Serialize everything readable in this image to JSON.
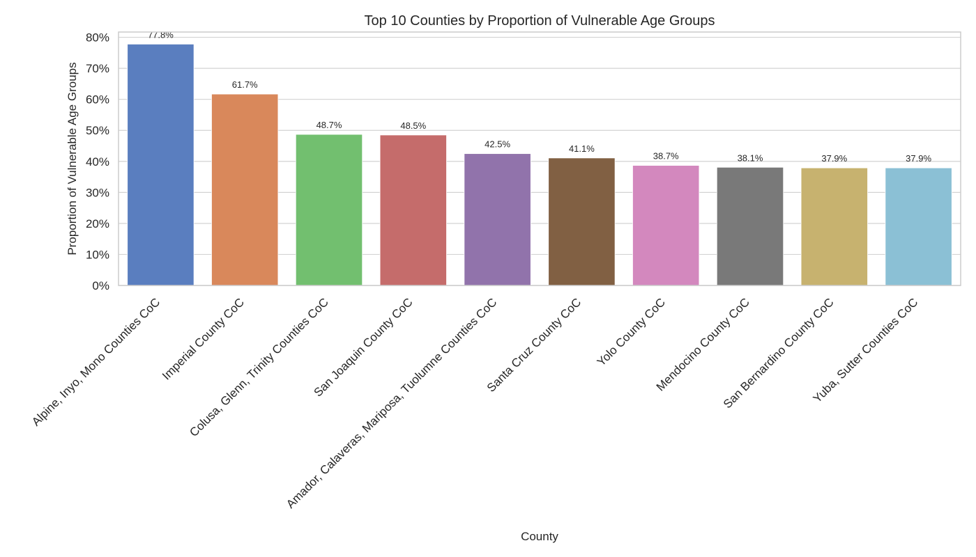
{
  "chart_data": {
    "type": "bar",
    "title": "Top 10 Counties by Proportion of Vulnerable Age Groups",
    "xlabel": "County",
    "ylabel": "Proportion of Vulnerable Age Groups",
    "categories": [
      "Alpine, Inyo, Mono Counties CoC",
      "Imperial County CoC",
      "Colusa, Glenn, Trinity Counties CoC",
      "San Joaquin County CoC",
      "Amador, Calaveras, Mariposa, Tuolumne Counties CoC",
      "Santa Cruz County CoC",
      "Yolo County CoC",
      "Mendocino County CoC",
      "San Bernardino County CoC",
      "Yuba, Sutter Counties CoC"
    ],
    "values": [
      77.8,
      61.7,
      48.7,
      48.5,
      42.5,
      41.1,
      38.7,
      38.1,
      37.9,
      37.9
    ],
    "data_labels": [
      "77.8%",
      "61.7%",
      "48.7%",
      "48.5%",
      "42.5%",
      "41.1%",
      "38.7%",
      "38.1%",
      "37.9%",
      "37.9%"
    ],
    "ylim": [
      0,
      81.7
    ],
    "yticks": [
      0,
      10,
      20,
      30,
      40,
      50,
      60,
      70,
      80
    ],
    "ytick_labels": [
      "0%",
      "10%",
      "20%",
      "30%",
      "40%",
      "50%",
      "60%",
      "70%",
      "80%"
    ],
    "colors": [
      "#5a7ebf",
      "#d9885b",
      "#72bf6f",
      "#c56c6b",
      "#9173ab",
      "#816043",
      "#d388be",
      "#797979",
      "#c7b26f",
      "#8bc0d5"
    ],
    "grid": true,
    "legend": "none"
  }
}
